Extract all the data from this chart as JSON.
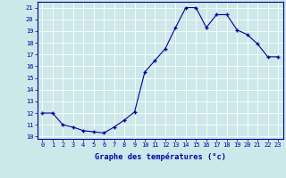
{
  "hours": [
    0,
    1,
    2,
    3,
    4,
    5,
    6,
    7,
    8,
    9,
    10,
    11,
    12,
    13,
    14,
    15,
    16,
    17,
    18,
    19,
    20,
    21,
    22,
    23
  ],
  "temps": [
    12.0,
    12.0,
    11.0,
    10.8,
    10.5,
    10.4,
    10.3,
    10.8,
    11.4,
    12.1,
    15.5,
    16.5,
    17.5,
    19.3,
    21.0,
    21.0,
    19.3,
    20.4,
    20.4,
    19.1,
    18.7,
    17.9,
    16.8,
    16.8
  ],
  "xlabel": "Graphe des températures (°c)",
  "bg_color": "#cce8e8",
  "line_color": "#000099",
  "grid_color": "#aacccc",
  "white_grid_color": "#ffffff",
  "text_color": "#0000aa",
  "ylim_min": 9.8,
  "ylim_max": 21.5,
  "yticks": [
    10,
    11,
    12,
    13,
    14,
    15,
    16,
    17,
    18,
    19,
    20,
    21
  ],
  "xticks": [
    0,
    1,
    2,
    3,
    4,
    5,
    6,
    7,
    8,
    9,
    10,
    11,
    12,
    13,
    14,
    15,
    16,
    17,
    18,
    19,
    20,
    21,
    22,
    23
  ],
  "tick_fontsize": 5.0,
  "xlabel_fontsize": 6.2
}
